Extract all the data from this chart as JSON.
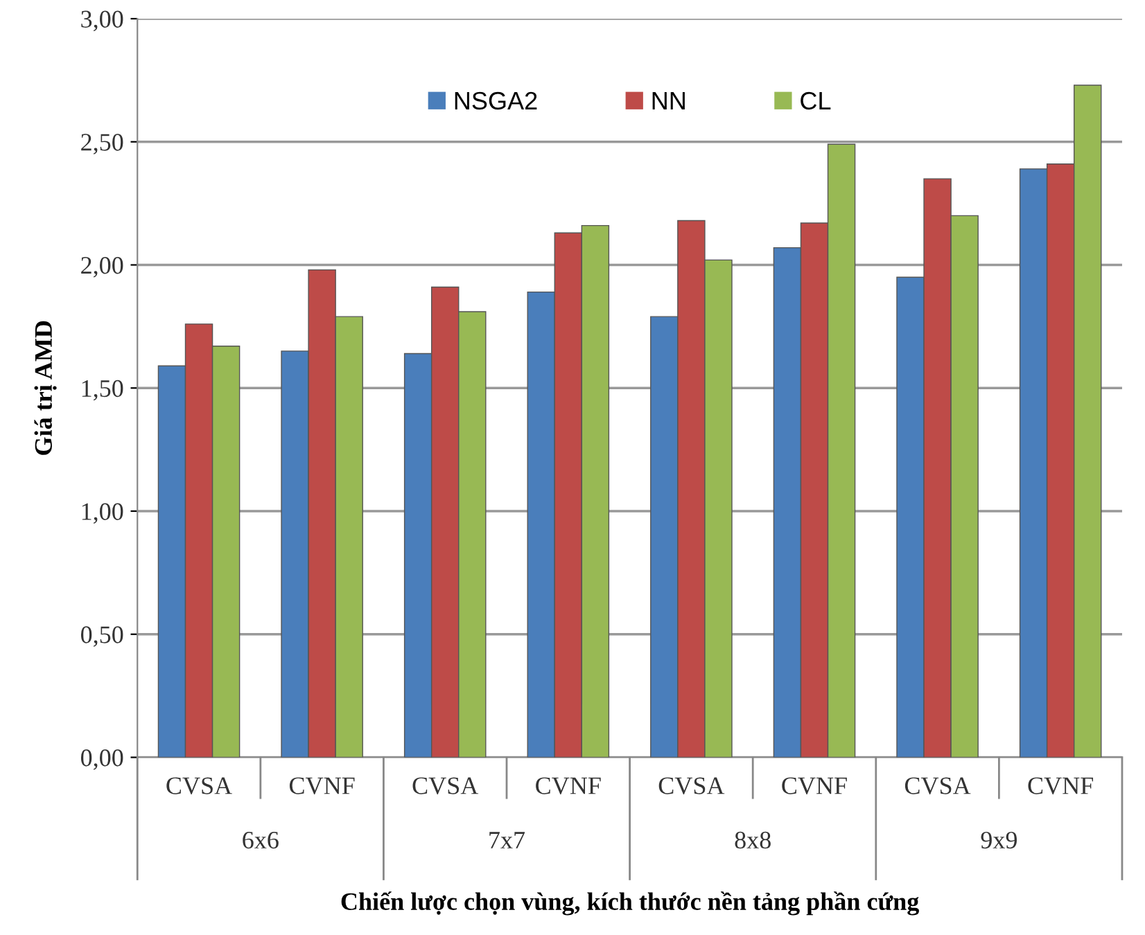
{
  "chart_data": {
    "type": "bar",
    "xlabel": "Chiến lược chọn vùng, kích thước nền tảng phần cứng",
    "ylabel": "Giá trị AMD",
    "categories": [
      "CVSA",
      "CVNF",
      "CVSA",
      "CVNF",
      "CVSA",
      "CVNF",
      "CVSA",
      "CVNF"
    ],
    "annotations": [
      "6x6",
      "7x7",
      "8x8",
      "9x9"
    ],
    "series": [
      {
        "name": "NSGA2",
        "color": "#4a7ebb",
        "values": [
          1.59,
          1.65,
          1.64,
          1.89,
          1.79,
          2.07,
          1.95,
          2.39
        ]
      },
      {
        "name": "NN",
        "color": "#be4b48",
        "values": [
          1.76,
          1.98,
          1.91,
          2.13,
          2.18,
          2.17,
          2.35,
          2.41
        ]
      },
      {
        "name": "CL",
        "color": "#98b954",
        "values": [
          1.67,
          1.79,
          1.81,
          2.16,
          2.02,
          2.49,
          2.2,
          2.73
        ]
      }
    ],
    "ylim": [
      0,
      3
    ],
    "yticks": [
      {
        "value": 0,
        "label": "0,00"
      },
      {
        "value": 0.5,
        "label": "0,50"
      },
      {
        "value": 1,
        "label": "1,00"
      },
      {
        "value": 1.5,
        "label": "1,50"
      },
      {
        "value": 2,
        "label": "2,00"
      },
      {
        "value": 2.5,
        "label": "2,50"
      },
      {
        "value": 3,
        "label": "3,00"
      }
    ],
    "grid": "y",
    "legend": "top"
  }
}
